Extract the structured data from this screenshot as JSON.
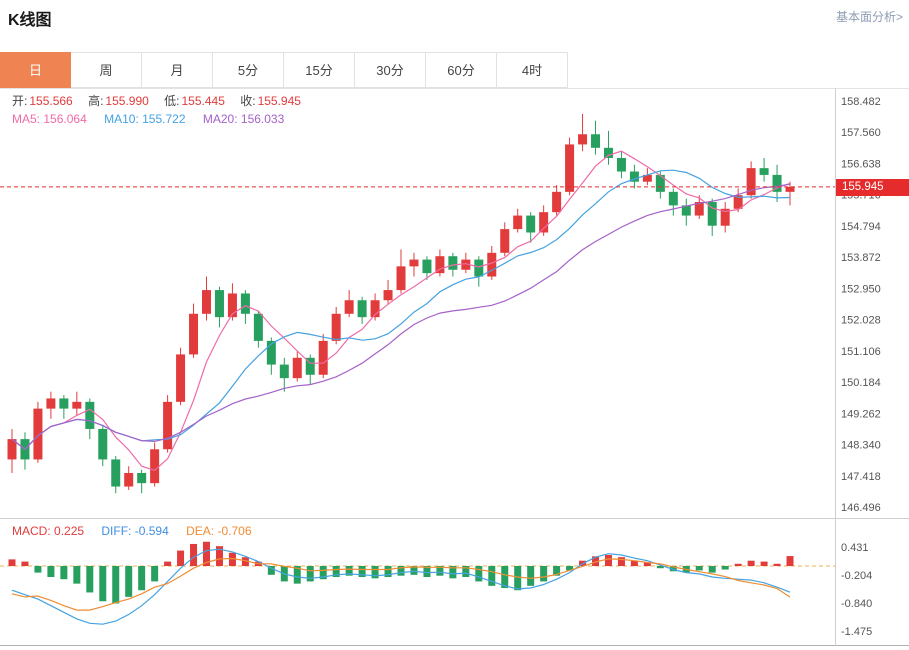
{
  "header": {
    "title": "K线图",
    "link": "基本面分析>"
  },
  "tabs": {
    "items": [
      {
        "label": "日",
        "active": true
      },
      {
        "label": "周",
        "active": false
      },
      {
        "label": "月",
        "active": false
      },
      {
        "label": "5分",
        "active": false
      },
      {
        "label": "15分",
        "active": false
      },
      {
        "label": "30分",
        "active": false
      },
      {
        "label": "60分",
        "active": false
      },
      {
        "label": "4时",
        "active": false
      }
    ]
  },
  "legend": {
    "ohlc": [
      {
        "label": "开:",
        "value": "155.566"
      },
      {
        "label": "高:",
        "value": "155.990"
      },
      {
        "label": "低:",
        "value": "155.445"
      },
      {
        "label": "收:",
        "value": "155.945"
      }
    ],
    "ma": [
      {
        "label": "MA5:",
        "value": "156.064"
      },
      {
        "label": "MA10:",
        "value": "155.722"
      },
      {
        "label": "MA20:",
        "value": "156.033"
      }
    ],
    "macd": [
      {
        "label": "MACD:",
        "value": "0.225"
      },
      {
        "label": "DIFF:",
        "value": "-0.594"
      },
      {
        "label": "DEA:",
        "value": "-0.706"
      }
    ]
  },
  "chart_data": {
    "type": "candlestick",
    "title": "K线图",
    "timeframe": "日",
    "current_price": "155.945",
    "open": 155.566,
    "high": 155.99,
    "low": 155.445,
    "close": 155.945,
    "ma5": 156.064,
    "ma10": 155.722,
    "ma20": 156.033,
    "colors": {
      "up": "#e23b3b",
      "down": "#27a05f",
      "ma5": "#ef6ba8",
      "ma10": "#45a2e2",
      "ma20": "#a562c8",
      "diff": "#45a2e2",
      "dea": "#ef8d33",
      "price_line": "#e52b2b"
    },
    "main": {
      "y_axis_labels": [
        "158.482",
        "157.560",
        "156.638",
        "155.716",
        "154.794",
        "153.872",
        "152.950",
        "152.028",
        "151.106",
        "150.184",
        "149.262",
        "148.340",
        "147.418",
        "146.496"
      ],
      "ma_periods": [
        5,
        10,
        20
      ],
      "candles": [
        [
          147.9,
          148.8,
          147.5,
          148.5
        ],
        [
          148.5,
          148.7,
          147.6,
          147.9
        ],
        [
          147.9,
          149.6,
          147.8,
          149.4
        ],
        [
          149.4,
          149.9,
          149.1,
          149.7
        ],
        [
          149.7,
          149.8,
          149.1,
          149.4
        ],
        [
          149.4,
          149.9,
          149.2,
          149.6
        ],
        [
          149.6,
          149.7,
          148.5,
          148.8
        ],
        [
          148.8,
          148.9,
          147.7,
          147.9
        ],
        [
          147.9,
          148.0,
          146.9,
          147.1
        ],
        [
          147.1,
          147.7,
          147.0,
          147.5
        ],
        [
          147.5,
          147.6,
          146.9,
          147.2
        ],
        [
          147.2,
          148.4,
          147.1,
          148.2
        ],
        [
          148.2,
          149.8,
          148.1,
          149.6
        ],
        [
          149.6,
          151.2,
          149.5,
          151.0
        ],
        [
          151.0,
          152.5,
          150.9,
          152.2
        ],
        [
          152.2,
          153.3,
          152.0,
          152.9
        ],
        [
          152.9,
          153.0,
          151.8,
          152.1
        ],
        [
          152.1,
          153.1,
          152.0,
          152.8
        ],
        [
          152.8,
          152.9,
          151.9,
          152.2
        ],
        [
          152.2,
          152.3,
          151.2,
          151.4
        ],
        [
          151.4,
          151.5,
          150.4,
          150.7
        ],
        [
          150.7,
          150.9,
          149.9,
          150.3
        ],
        [
          150.3,
          151.1,
          150.2,
          150.9
        ],
        [
          150.9,
          151.0,
          150.1,
          150.4
        ],
        [
          150.4,
          151.6,
          150.3,
          151.4
        ],
        [
          151.4,
          152.4,
          151.3,
          152.2
        ],
        [
          152.2,
          152.9,
          152.1,
          152.6
        ],
        [
          152.6,
          152.7,
          151.9,
          152.1
        ],
        [
          152.1,
          152.8,
          152.0,
          152.6
        ],
        [
          152.6,
          153.2,
          152.5,
          152.9
        ],
        [
          152.9,
          154.1,
          152.8,
          153.6
        ],
        [
          153.6,
          154.0,
          153.3,
          153.8
        ],
        [
          153.8,
          153.9,
          153.2,
          153.4
        ],
        [
          153.4,
          154.1,
          153.3,
          153.9
        ],
        [
          153.9,
          154.0,
          153.3,
          153.5
        ],
        [
          153.5,
          154.0,
          153.4,
          153.8
        ],
        [
          153.8,
          153.9,
          153.0,
          153.3
        ],
        [
          153.3,
          154.2,
          153.2,
          154.0
        ],
        [
          154.0,
          154.9,
          153.9,
          154.7
        ],
        [
          154.7,
          155.3,
          154.6,
          155.1
        ],
        [
          155.1,
          155.2,
          154.3,
          154.6
        ],
        [
          154.6,
          155.4,
          154.5,
          155.2
        ],
        [
          155.2,
          156.0,
          155.1,
          155.8
        ],
        [
          155.8,
          157.4,
          155.7,
          157.2
        ],
        [
          157.2,
          158.1,
          157.0,
          157.5
        ],
        [
          157.5,
          157.9,
          156.9,
          157.1
        ],
        [
          157.1,
          157.6,
          156.6,
          156.8
        ],
        [
          156.8,
          157.0,
          156.2,
          156.4
        ],
        [
          156.4,
          156.6,
          155.9,
          156.1
        ],
        [
          156.1,
          156.5,
          156.0,
          156.3
        ],
        [
          156.3,
          156.4,
          155.6,
          155.8
        ],
        [
          155.8,
          155.9,
          155.1,
          155.4
        ],
        [
          155.4,
          155.6,
          154.8,
          155.1
        ],
        [
          155.1,
          155.7,
          155.0,
          155.5
        ],
        [
          155.5,
          155.6,
          154.5,
          154.8
        ],
        [
          154.8,
          155.5,
          154.6,
          155.3
        ],
        [
          155.3,
          155.9,
          155.2,
          155.7
        ],
        [
          155.7,
          156.7,
          155.6,
          156.5
        ],
        [
          156.5,
          156.8,
          156.1,
          156.3
        ],
        [
          156.3,
          156.6,
          155.5,
          155.8
        ],
        [
          155.8,
          156.1,
          155.4,
          155.945
        ]
      ]
    },
    "macd": {
      "y_axis_labels": [
        "0.431",
        "-0.204",
        "-0.840",
        "-1.475"
      ],
      "hist": [
        0.15,
        0.1,
        -0.15,
        -0.25,
        -0.3,
        -0.4,
        -0.6,
        -0.8,
        -0.85,
        -0.7,
        -0.55,
        -0.35,
        0.1,
        0.35,
        0.5,
        0.55,
        0.45,
        0.3,
        0.2,
        0.1,
        -0.2,
        -0.35,
        -0.4,
        -0.35,
        -0.3,
        -0.25,
        -0.22,
        -0.25,
        -0.28,
        -0.25,
        -0.22,
        -0.2,
        -0.25,
        -0.22,
        -0.28,
        -0.25,
        -0.35,
        -0.45,
        -0.5,
        -0.55,
        -0.45,
        -0.35,
        -0.22,
        -0.1,
        0.12,
        0.22,
        0.25,
        0.2,
        0.12,
        0.08,
        -0.05,
        -0.12,
        -0.15,
        -0.1,
        -0.15,
        -0.08,
        0.05,
        0.12,
        0.1,
        0.05,
        0.225
      ],
      "diff": [
        -0.55,
        -0.65,
        -0.75,
        -0.9,
        -1.05,
        -1.2,
        -1.3,
        -1.32,
        -1.25,
        -1.1,
        -0.9,
        -0.65,
        -0.35,
        -0.05,
        0.2,
        0.35,
        0.38,
        0.32,
        0.22,
        0.1,
        -0.05,
        -0.18,
        -0.25,
        -0.28,
        -0.25,
        -0.2,
        -0.18,
        -0.2,
        -0.22,
        -0.2,
        -0.15,
        -0.12,
        -0.15,
        -0.14,
        -0.18,
        -0.16,
        -0.25,
        -0.35,
        -0.45,
        -0.52,
        -0.5,
        -0.42,
        -0.3,
        -0.15,
        0.05,
        0.2,
        0.28,
        0.25,
        0.18,
        0.12,
        0.02,
        -0.08,
        -0.15,
        -0.18,
        -0.25,
        -0.28,
        -0.3,
        -0.32,
        -0.38,
        -0.48,
        -0.594
      ],
      "dea": [
        -0.63,
        -0.7,
        -0.68,
        -0.78,
        -0.9,
        -1.0,
        -1.0,
        -0.92,
        -0.83,
        -0.75,
        -0.63,
        -0.48,
        -0.4,
        -0.23,
        -0.05,
        0.08,
        0.16,
        0.17,
        0.12,
        0.05,
        0.05,
        -0.01,
        -0.05,
        -0.11,
        -0.1,
        -0.08,
        -0.07,
        -0.08,
        -0.08,
        -0.08,
        -0.04,
        -0.02,
        -0.03,
        -0.03,
        -0.04,
        -0.04,
        -0.08,
        -0.13,
        -0.2,
        -0.25,
        -0.28,
        -0.25,
        -0.19,
        -0.1,
        -0.01,
        0.09,
        0.16,
        0.15,
        0.12,
        0.08,
        0.05,
        -0.02,
        -0.08,
        -0.13,
        -0.18,
        -0.24,
        -0.33,
        -0.38,
        -0.43,
        -0.51,
        -0.706
      ]
    }
  }
}
